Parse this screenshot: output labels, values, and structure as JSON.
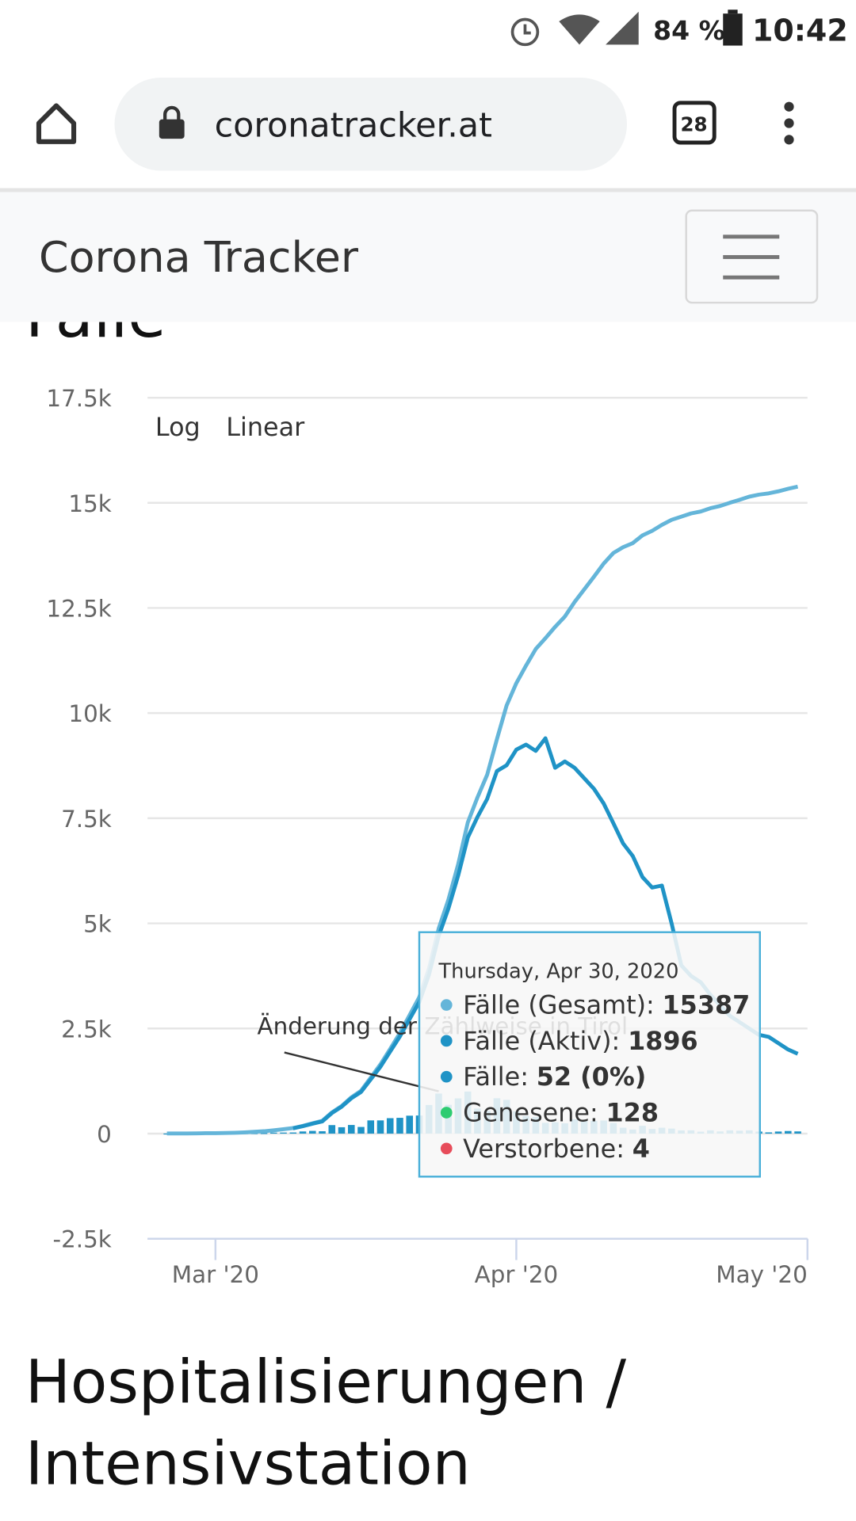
{
  "status_bar": {
    "battery": "84 %",
    "time": "10:42"
  },
  "browser": {
    "url": "coronatracker.at",
    "tabs": "28"
  },
  "navbar": {
    "brand": "Corona Tracker"
  },
  "section_title": "Fälle",
  "next_heading": [
    "Hospitalisierungen /",
    "Intensivstation"
  ],
  "chart_data": {
    "type": "line",
    "controls": [
      "Log",
      "Linear"
    ],
    "annotation": "Änderung der Zählweise in Tirol",
    "x": [
      "2020-02-25",
      "2020-02-26",
      "2020-02-27",
      "2020-02-28",
      "2020-02-29",
      "2020-03-01",
      "2020-03-02",
      "2020-03-03",
      "2020-03-04",
      "2020-03-05",
      "2020-03-06",
      "2020-03-07",
      "2020-03-08",
      "2020-03-09",
      "2020-03-10",
      "2020-03-11",
      "2020-03-12",
      "2020-03-13",
      "2020-03-14",
      "2020-03-15",
      "2020-03-16",
      "2020-03-17",
      "2020-03-18",
      "2020-03-19",
      "2020-03-20",
      "2020-03-21",
      "2020-03-22",
      "2020-03-23",
      "2020-03-24",
      "2020-03-25",
      "2020-03-26",
      "2020-03-27",
      "2020-03-28",
      "2020-03-29",
      "2020-03-30",
      "2020-03-31",
      "2020-04-01",
      "2020-04-02",
      "2020-04-03",
      "2020-04-04",
      "2020-04-05",
      "2020-04-06",
      "2020-04-07",
      "2020-04-08",
      "2020-04-09",
      "2020-04-10",
      "2020-04-11",
      "2020-04-12",
      "2020-04-13",
      "2020-04-14",
      "2020-04-15",
      "2020-04-16",
      "2020-04-17",
      "2020-04-18",
      "2020-04-19",
      "2020-04-20",
      "2020-04-21",
      "2020-04-22",
      "2020-04-23",
      "2020-04-24",
      "2020-04-25",
      "2020-04-26",
      "2020-04-27",
      "2020-04-28",
      "2020-04-29",
      "2020-04-30"
    ],
    "xlim": [
      "2020-02-23",
      "2020-05-01"
    ],
    "xticks": [
      {
        "value": "2020-03-01",
        "label": "Mar '20"
      },
      {
        "value": "2020-04-01",
        "label": "Apr '20"
      },
      {
        "value": "2020-05-01",
        "label": "May '20"
      }
    ],
    "ylim": [
      -2500,
      17500
    ],
    "yticks": [
      {
        "value": -2500,
        "label": "-2.5k"
      },
      0,
      {
        "value": 2500,
        "label": "2.5k"
      },
      {
        "value": 5000,
        "label": "5k"
      },
      {
        "value": 7500,
        "label": "7.5k"
      },
      {
        "value": 10000,
        "label": "10k"
      },
      {
        "value": 12500,
        "label": "12.5k"
      },
      {
        "value": 15000,
        "label": "15k"
      },
      {
        "value": 17500,
        "label": "17.5k"
      }
    ],
    "grid": true,
    "series": [
      {
        "type": "bar",
        "color": "#1f93c6",
        "values": [
          2,
          1,
          0,
          2,
          4,
          1,
          4,
          4,
          11,
          12,
          14,
          24,
          25,
          27,
          51,
          64,
          56,
          202,
          151,
          205,
          158,
          314,
          314,
          367,
          375,
          426,
          430,
          680,
          952,
          684,
          838,
          1001,
          596,
          541,
          841,
          803,
          531,
          418,
          395,
          257,
          270,
          246,
          342,
          303,
          302,
          311,
          251,
          139,
          96,
          185,
          110,
          140,
          119,
          76,
          78,
          46,
          78,
          52,
          77,
          69,
          77,
          48,
          29,
          49,
          61,
          52
        ]
      },
      {
        "type": "line",
        "color": "#64b5d9",
        "values": [
          2,
          3,
          3,
          5,
          9,
          10,
          14,
          18,
          29,
          41,
          55,
          79,
          104,
          131,
          182,
          246,
          302,
          504,
          655,
          860,
          1018,
          1332,
          1646,
          2013,
          2388,
          2814,
          3244,
          3924,
          4876,
          5560,
          6398,
          7399,
          7995,
          8536,
          9377,
          10180,
          10711,
          11129,
          11524,
          11781,
          12051,
          12297,
          12639,
          12942,
          13244,
          13555,
          13806,
          13945,
          14041,
          14226,
          14336,
          14476,
          14595,
          14671,
          14749,
          14795,
          14873,
          14925,
          15002,
          15071,
          15148,
          15196,
          15225,
          15274,
          15335,
          15387
        ]
      },
      {
        "type": "line",
        "color": "#1f93c6",
        "values": [
          null,
          null,
          null,
          null,
          null,
          null,
          null,
          null,
          null,
          null,
          null,
          null,
          null,
          125,
          175,
          236,
          290,
          490,
          640,
          840,
          990,
          1290,
          1590,
          1950,
          2310,
          2720,
          3130,
          3780,
          4700,
          5350,
          6130,
          7040,
          7530,
          7960,
          8620,
          8760,
          9130,
          9250,
          9100,
          9400,
          8700,
          8850,
          8700,
          8450,
          8200,
          7850,
          7380,
          6900,
          6600,
          6100,
          5850,
          5900,
          5000,
          4000,
          3750,
          3600,
          3300,
          3050,
          2800,
          2650,
          2500,
          2350,
          2300,
          2150,
          2000,
          1896
        ]
      }
    ],
    "tooltip": {
      "date": "Thursday, Apr 30, 2020",
      "items": [
        {
          "label": "Fälle (Gesamt):",
          "value": 15387,
          "color": "#64b5d9"
        },
        {
          "label": "Fälle (Aktiv):",
          "value": 1896,
          "color": "#1f93c6"
        },
        {
          "label": "Fälle:",
          "value": "52 (0%)",
          "color": "#1f93c6"
        },
        {
          "label": "Genesene:",
          "value": 128,
          "color": "#2ecc71"
        },
        {
          "label": "Verstorbene:",
          "value": 4,
          "color": "#e74c5a"
        }
      ]
    }
  }
}
